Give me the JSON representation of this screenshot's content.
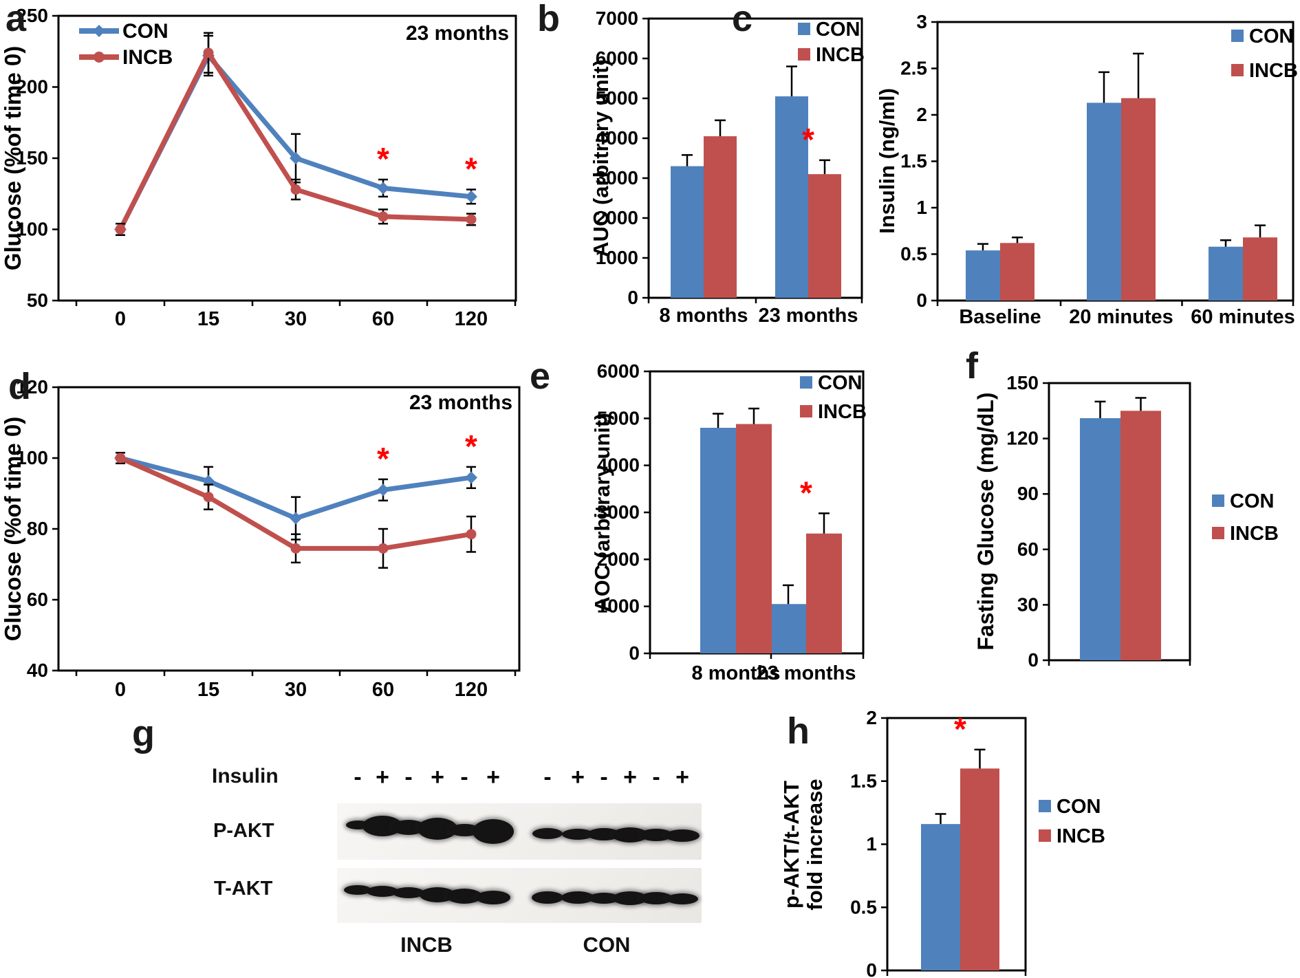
{
  "colors": {
    "con": "#4F81BD",
    "incb": "#C0504D",
    "asterisk": "#FF0000",
    "axis": "#000000"
  },
  "legend_labels": [
    "CON",
    "INCB"
  ],
  "panels": {
    "a": {
      "label": "a",
      "annotation": "23 months"
    },
    "b": {
      "label": "b"
    },
    "c": {
      "label": "c"
    },
    "d": {
      "label": "d",
      "annotation": "23 months"
    },
    "e": {
      "label": "e"
    },
    "f": {
      "label": "f"
    },
    "g": {
      "label": "g",
      "insulin_label": "Insulin",
      "insulin_signs": [
        "-",
        "+",
        "-",
        "+",
        "-",
        "+"
      ],
      "band_row_labels": [
        "P-AKT",
        "T-AKT"
      ],
      "group_labels": [
        "INCB",
        "CON"
      ],
      "p_akt_bands": {
        "incb": [
          [
            35,
            13
          ],
          [
            58,
            30
          ],
          [
            50,
            22
          ],
          [
            58,
            32
          ],
          [
            45,
            18
          ],
          [
            60,
            36
          ]
        ],
        "con": [
          [
            44,
            16
          ],
          [
            46,
            16
          ],
          [
            48,
            18
          ],
          [
            52,
            22
          ],
          [
            48,
            18
          ],
          [
            50,
            18
          ]
        ]
      },
      "t_akt_bands": {
        "incb": [
          [
            40,
            14
          ],
          [
            46,
            16
          ],
          [
            46,
            16
          ],
          [
            52,
            22
          ],
          [
            52,
            22
          ],
          [
            50,
            20
          ]
        ],
        "con": [
          [
            46,
            18
          ],
          [
            48,
            18
          ],
          [
            46,
            16
          ],
          [
            50,
            20
          ],
          [
            48,
            18
          ],
          [
            46,
            16
          ]
        ]
      }
    },
    "h": {
      "label": "h"
    }
  },
  "chart_data": [
    {
      "panel": "a",
      "type": "line",
      "title": "",
      "xlabel": "",
      "ylabel": "Glucose (%of time 0)",
      "annotation": "23 months",
      "x_categories": [
        "0",
        "15",
        "30",
        "60",
        "120"
      ],
      "ylim": [
        50,
        250
      ],
      "ytick_step": 50,
      "legend_position": "inside-top-left",
      "series": [
        {
          "name": "CON",
          "color": "con",
          "marker": "diamond",
          "values": [
            100,
            222,
            150,
            129,
            123
          ],
          "errors": [
            4,
            14,
            17,
            6,
            5
          ]
        },
        {
          "name": "INCB",
          "color": "incb",
          "marker": "circle",
          "values": [
            100,
            224,
            128,
            109,
            107
          ],
          "errors": [
            4,
            14,
            7,
            5,
            4
          ]
        }
      ],
      "asterisks": [
        {
          "category": 3,
          "series": 0
        },
        {
          "category": 4,
          "series": 0
        }
      ]
    },
    {
      "panel": "b",
      "type": "bar",
      "title": "",
      "xlabel": "",
      "ylabel": "AUC (arbitrary unit)",
      "categories": [
        "8 months",
        "23 months"
      ],
      "ylim": [
        0,
        7000
      ],
      "ytick_step": 1000,
      "legend_position": "inside-top-right",
      "series": [
        {
          "name": "CON",
          "color": "con",
          "values": [
            3300,
            5050
          ],
          "errors": [
            280,
            750
          ]
        },
        {
          "name": "INCB",
          "color": "incb",
          "values": [
            4050,
            3100
          ],
          "errors": [
            400,
            350
          ]
        }
      ],
      "asterisks": [
        {
          "category": 1,
          "series": 1
        }
      ]
    },
    {
      "panel": "c",
      "type": "bar",
      "title": "",
      "xlabel": "",
      "ylabel": "Insulin (ng/ml)",
      "categories": [
        "Baseline",
        "20 minutes",
        "60 minutes"
      ],
      "ylim": [
        0,
        3
      ],
      "ytick_step": 0.5,
      "legend_position": "inside-top-right",
      "series": [
        {
          "name": "CON",
          "color": "con",
          "values": [
            0.54,
            2.13,
            0.58
          ],
          "errors": [
            0.07,
            0.33,
            0.07
          ]
        },
        {
          "name": "INCB",
          "color": "incb",
          "values": [
            0.62,
            2.18,
            0.68
          ],
          "errors": [
            0.06,
            0.48,
            0.13
          ]
        }
      ],
      "asterisks": []
    },
    {
      "panel": "d",
      "type": "line",
      "title": "",
      "xlabel": "",
      "ylabel": "Glucose (%of time 0)",
      "annotation": "23 months",
      "x_categories": [
        "0",
        "15",
        "30",
        "60",
        "120"
      ],
      "ylim": [
        40,
        120
      ],
      "ytick_step": 20,
      "legend_position": "none",
      "series": [
        {
          "name": "CON",
          "color": "con",
          "marker": "diamond",
          "values": [
            100,
            93.5,
            83,
            91,
            94.5
          ],
          "errors": [
            1.5,
            4,
            6,
            3,
            3
          ]
        },
        {
          "name": "INCB",
          "color": "incb",
          "marker": "circle",
          "values": [
            100,
            89,
            74.5,
            74.5,
            78.5
          ],
          "errors": [
            1.5,
            3.5,
            4,
            5.5,
            5
          ]
        }
      ],
      "asterisks": [
        {
          "category": 3,
          "series": 0
        },
        {
          "category": 4,
          "series": 0
        }
      ]
    },
    {
      "panel": "e",
      "type": "bar",
      "title": "",
      "xlabel": "",
      "ylabel": "AOC (arbitrary unit)",
      "categories": [
        "8 months",
        "23 months"
      ],
      "ylim": [
        0,
        6000
      ],
      "ytick_step": 1000,
      "legend_position": "inside-top-right",
      "series": [
        {
          "name": "CON",
          "color": "con",
          "values": [
            4800,
            1050
          ],
          "errors": [
            300,
            400
          ]
        },
        {
          "name": "INCB",
          "color": "incb",
          "values": [
            4880,
            2550
          ],
          "errors": [
            330,
            430
          ]
        }
      ],
      "asterisks": [
        {
          "category": 1,
          "series": 1
        }
      ]
    },
    {
      "panel": "f",
      "type": "bar",
      "title": "",
      "xlabel": "",
      "ylabel": "Fasting Glucose (mg/dL)",
      "categories": [
        ""
      ],
      "ylim": [
        0,
        150
      ],
      "ytick_step": 30,
      "legend_position": "outside-right",
      "series": [
        {
          "name": "CON",
          "color": "con",
          "values": [
            131
          ],
          "errors": [
            9
          ]
        },
        {
          "name": "INCB",
          "color": "incb",
          "values": [
            135
          ],
          "errors": [
            7
          ]
        }
      ],
      "asterisks": []
    },
    {
      "panel": "h",
      "type": "bar",
      "title": "",
      "xlabel": "",
      "ylabel": "p-AKT/t-AKT\nfold increase",
      "categories": [
        ""
      ],
      "ylim": [
        0,
        2
      ],
      "ytick_step": 0.5,
      "legend_position": "outside-right",
      "series": [
        {
          "name": "CON",
          "color": "con",
          "values": [
            1.16
          ],
          "errors": [
            0.08
          ]
        },
        {
          "name": "INCB",
          "color": "incb",
          "values": [
            1.6
          ],
          "errors": [
            0.15
          ]
        }
      ],
      "asterisks": [
        {
          "category": 0,
          "series": 1
        }
      ]
    }
  ]
}
